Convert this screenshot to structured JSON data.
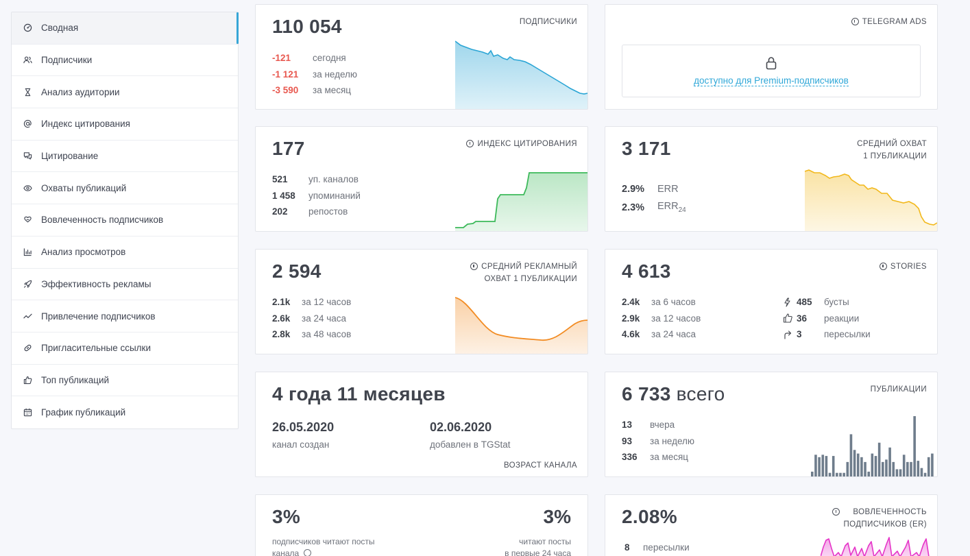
{
  "sidebar": {
    "items": [
      {
        "label": "Сводная",
        "icon": "dashboard-icon"
      },
      {
        "label": "Подписчики",
        "icon": "users-icon"
      },
      {
        "label": "Анализ аудитории",
        "icon": "hourglass-icon"
      },
      {
        "label": "Индекс цитирования",
        "icon": "at-icon"
      },
      {
        "label": "Цитирование",
        "icon": "chat-icon"
      },
      {
        "label": "Охваты публикаций",
        "icon": "eye-icon"
      },
      {
        "label": "Вовлеченность подписчиков",
        "icon": "heart-hand-icon"
      },
      {
        "label": "Анализ просмотров",
        "icon": "bar-chart-icon"
      },
      {
        "label": "Эффективность рекламы",
        "icon": "rocket-icon"
      },
      {
        "label": "Привлечение подписчиков",
        "icon": "trend-icon"
      },
      {
        "label": "Пригласительные ссылки",
        "icon": "link-icon"
      },
      {
        "label": "Топ публикаций",
        "icon": "thumbs-up-icon"
      },
      {
        "label": "График публикаций",
        "icon": "calendar-icon"
      }
    ]
  },
  "subscribers": {
    "value": "110 054",
    "tag": "ПОДПИСЧИКИ",
    "rows": [
      {
        "value": "-121",
        "label": "сегодня"
      },
      {
        "value": "-1 121",
        "label": "за неделю"
      },
      {
        "value": "-3 590",
        "label": "за месяц"
      }
    ],
    "color": "#2aa5d5"
  },
  "telegram_ads": {
    "tag": "TELEGRAM ADS",
    "link": "доступно для Premium-подписчиков",
    "icon": "lock-icon"
  },
  "citation": {
    "value": "177",
    "tag": "ИНДЕКС ЦИТИРОВАНИЯ",
    "rows": [
      {
        "value": "521",
        "label": "уп. каналов"
      },
      {
        "value": "1 458",
        "label": "упоминаний"
      },
      {
        "value": "202",
        "label": "репостов"
      }
    ],
    "color": "#3cb95a"
  },
  "avg_reach": {
    "value": "3 171",
    "tag_line1": "СРЕДНИЙ ОХВАТ",
    "tag_line2": "1 ПУБЛИКАЦИИ",
    "rows": [
      {
        "value": "2.9%",
        "label": "ERR",
        "sub": ""
      },
      {
        "value": "2.3%",
        "label": "ERR",
        "sub": "24"
      }
    ],
    "color": "#f2b81b"
  },
  "ad_reach": {
    "value": "2 594",
    "tag_line1": "СРЕДНИЙ РЕКЛАМНЫЙ",
    "tag_line2": "ОХВАТ 1 ПУБЛИКАЦИИ",
    "rows": [
      {
        "value": "2.1k",
        "label": "за 12 часов"
      },
      {
        "value": "2.6k",
        "label": "за 24 часа"
      },
      {
        "value": "2.8k",
        "label": "за 48 часов"
      }
    ],
    "color": "#f28b22"
  },
  "stories": {
    "value": "4 613",
    "tag": "STORIES",
    "rows_left": [
      {
        "value": "2.4k",
        "label": "за 6 часов"
      },
      {
        "value": "2.9k",
        "label": "за 12 часов"
      },
      {
        "value": "4.6k",
        "label": "за 24 часа"
      }
    ],
    "rows_right": [
      {
        "icon": "bolt-icon",
        "value": "485",
        "label": "бусты"
      },
      {
        "icon": "thumbs-up-icon",
        "value": "36",
        "label": "реакции"
      },
      {
        "icon": "forward-icon",
        "value": "3",
        "label": "пересылки"
      }
    ]
  },
  "age": {
    "value": "4 года 11 месяцев",
    "created_date": "26.05.2020",
    "created_label": "канал создан",
    "added_date": "02.06.2020",
    "added_label": "добавлен в TGStat",
    "tag": "ВОЗРАСТ КАНАЛА"
  },
  "posts": {
    "value": "6 733",
    "suffix": "всего",
    "tag": "ПУБЛИКАЦИИ",
    "rows": [
      {
        "value": "13",
        "label": "вчера"
      },
      {
        "value": "93",
        "label": "за неделю"
      },
      {
        "value": "336",
        "label": "за месяц"
      }
    ],
    "bars": [
      4,
      18,
      16,
      18,
      17,
      3,
      17,
      3,
      3,
      3,
      12,
      35,
      22,
      19,
      16,
      12,
      4,
      19,
      17,
      28,
      12,
      14,
      24,
      12,
      6,
      6,
      18,
      12,
      12,
      50,
      13,
      7,
      3,
      16,
      19
    ],
    "bar_max": 50,
    "color": "#6f7d8c"
  },
  "read_share": {
    "left_value": "3%",
    "left_label_1": "подписчиков читают посты",
    "left_label_2": "канала",
    "right_value": "3%",
    "right_label_1": "читают посты",
    "right_label_2": "в первые 24 часа"
  },
  "engagement": {
    "value": "2.08%",
    "tag_line1": "ВОВЛЕЧЕННОСТЬ",
    "tag_line2": "ПОДПИСЧИКОВ (ER)",
    "rows": [
      {
        "value": "8",
        "label": "пересылки"
      }
    ],
    "color": "#e535c8"
  }
}
